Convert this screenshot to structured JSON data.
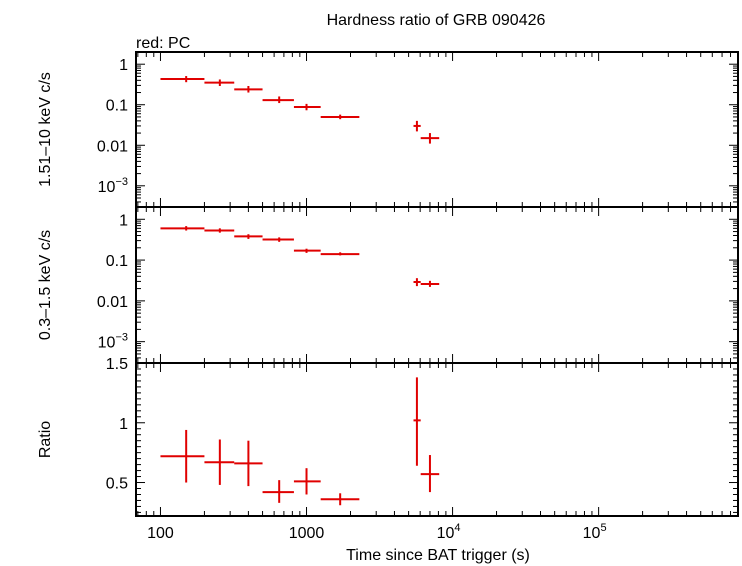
{
  "title": "Hardness ratio of GRB 090426",
  "subtitle": "red: PC",
  "chart_data": [
    {
      "type": "scatter",
      "panel": "hard",
      "ylabel": "1.51–10 keV c/s",
      "yscale": "log",
      "ylim": [
        0.0003,
        2
      ],
      "yticks": [
        {
          "value": 1,
          "label": "1",
          "sup": ""
        },
        {
          "value": 0.1,
          "label": "0.1",
          "sup": ""
        },
        {
          "value": 0.01,
          "label": "0.01",
          "sup": ""
        },
        {
          "value": 0.001,
          "label": "10",
          "sup": "−3"
        }
      ],
      "color": "#e00000",
      "points": [
        {
          "x": 150,
          "xlo": 100,
          "xhi": 200,
          "y": 0.43,
          "ylo": 0.36,
          "yhi": 0.51
        },
        {
          "x": 255,
          "xlo": 200,
          "xhi": 320,
          "y": 0.35,
          "ylo": 0.29,
          "yhi": 0.42
        },
        {
          "x": 400,
          "xlo": 320,
          "xhi": 500,
          "y": 0.24,
          "ylo": 0.2,
          "yhi": 0.29
        },
        {
          "x": 650,
          "xlo": 500,
          "xhi": 820,
          "y": 0.13,
          "ylo": 0.11,
          "yhi": 0.16
        },
        {
          "x": 1000,
          "xlo": 820,
          "xhi": 1250,
          "y": 0.088,
          "ylo": 0.073,
          "yhi": 0.105
        },
        {
          "x": 1700,
          "xlo": 1250,
          "xhi": 2300,
          "y": 0.05,
          "ylo": 0.044,
          "yhi": 0.057
        },
        {
          "x": 5700,
          "xlo": 5400,
          "xhi": 6050,
          "y": 0.03,
          "ylo": 0.022,
          "yhi": 0.04
        },
        {
          "x": 7000,
          "xlo": 6050,
          "xhi": 8100,
          "y": 0.015,
          "ylo": 0.011,
          "yhi": 0.02
        }
      ]
    },
    {
      "type": "scatter",
      "panel": "soft",
      "ylabel": "0.3–1.5 keV c/s",
      "yscale": "log",
      "ylim": [
        0.0003,
        2
      ],
      "yticks": [
        {
          "value": 1,
          "label": "1",
          "sup": ""
        },
        {
          "value": 0.1,
          "label": "0.1",
          "sup": ""
        },
        {
          "value": 0.01,
          "label": "0.01",
          "sup": ""
        },
        {
          "value": 0.001,
          "label": "10",
          "sup": "−3"
        }
      ],
      "color": "#e00000",
      "points": [
        {
          "x": 150,
          "xlo": 100,
          "xhi": 200,
          "y": 0.6,
          "ylo": 0.53,
          "yhi": 0.68
        },
        {
          "x": 255,
          "xlo": 200,
          "xhi": 320,
          "y": 0.53,
          "ylo": 0.47,
          "yhi": 0.6
        },
        {
          "x": 400,
          "xlo": 320,
          "xhi": 500,
          "y": 0.38,
          "ylo": 0.33,
          "yhi": 0.43
        },
        {
          "x": 650,
          "xlo": 500,
          "xhi": 820,
          "y": 0.32,
          "ylo": 0.28,
          "yhi": 0.36
        },
        {
          "x": 1000,
          "xlo": 820,
          "xhi": 1250,
          "y": 0.17,
          "ylo": 0.15,
          "yhi": 0.19
        },
        {
          "x": 1700,
          "xlo": 1250,
          "xhi": 2300,
          "y": 0.14,
          "ylo": 0.13,
          "yhi": 0.155
        },
        {
          "x": 5700,
          "xlo": 5400,
          "xhi": 6050,
          "y": 0.029,
          "ylo": 0.023,
          "yhi": 0.036
        },
        {
          "x": 7000,
          "xlo": 6050,
          "xhi": 8100,
          "y": 0.026,
          "ylo": 0.022,
          "yhi": 0.031
        }
      ]
    },
    {
      "type": "scatter",
      "panel": "ratio",
      "ylabel": "Ratio",
      "yscale": "linear",
      "ylim": [
        0.22,
        1.5
      ],
      "yticks": [
        {
          "value": 1.5,
          "label": "1.5",
          "sup": ""
        },
        {
          "value": 1,
          "label": "1",
          "sup": ""
        },
        {
          "value": 0.5,
          "label": "0.5",
          "sup": ""
        }
      ],
      "color": "#e00000",
      "points": [
        {
          "x": 150,
          "xlo": 100,
          "xhi": 200,
          "y": 0.72,
          "ylo": 0.5,
          "yhi": 0.94
        },
        {
          "x": 255,
          "xlo": 200,
          "xhi": 320,
          "y": 0.67,
          "ylo": 0.48,
          "yhi": 0.86
        },
        {
          "x": 400,
          "xlo": 320,
          "xhi": 500,
          "y": 0.66,
          "ylo": 0.47,
          "yhi": 0.85
        },
        {
          "x": 650,
          "xlo": 500,
          "xhi": 820,
          "y": 0.42,
          "ylo": 0.33,
          "yhi": 0.52
        },
        {
          "x": 1000,
          "xlo": 820,
          "xhi": 1250,
          "y": 0.51,
          "ylo": 0.4,
          "yhi": 0.62
        },
        {
          "x": 1700,
          "xlo": 1250,
          "xhi": 2300,
          "y": 0.36,
          "ylo": 0.31,
          "yhi": 0.41
        },
        {
          "x": 5700,
          "xlo": 5400,
          "xhi": 6050,
          "y": 1.02,
          "ylo": 0.64,
          "yhi": 1.38
        },
        {
          "x": 7000,
          "xlo": 6050,
          "xhi": 8100,
          "y": 0.57,
          "ylo": 0.42,
          "yhi": 0.73
        }
      ]
    }
  ],
  "xaxis": {
    "label": "Time since BAT trigger (s)",
    "scale": "log",
    "xlim": [
      68,
      900000
    ],
    "ticks": [
      {
        "value": 100,
        "label": "100",
        "sup": ""
      },
      {
        "value": 1000,
        "label": "1000",
        "sup": ""
      },
      {
        "value": 10000,
        "label": "10",
        "sup": "4"
      },
      {
        "value": 100000,
        "label": "10",
        "sup": "5"
      }
    ]
  }
}
